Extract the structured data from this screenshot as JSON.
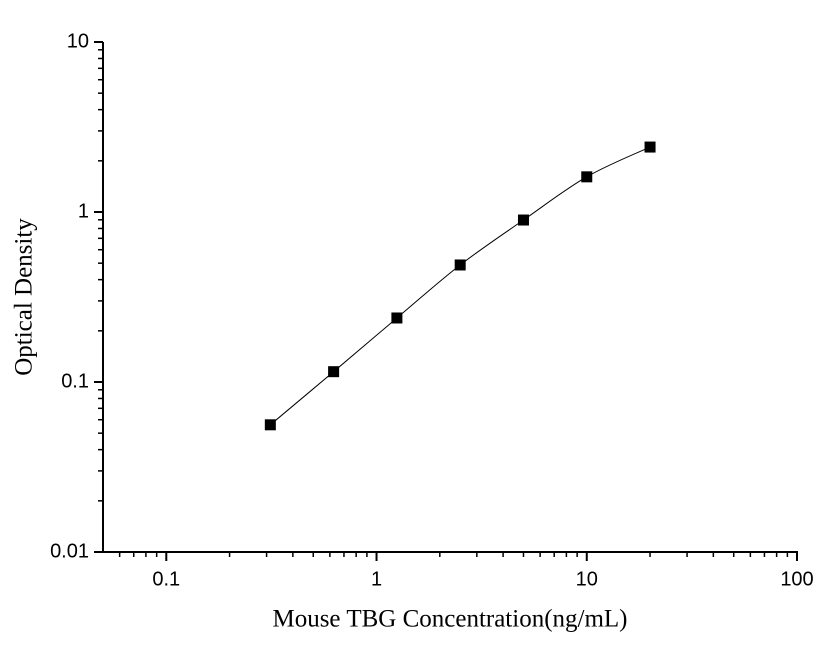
{
  "chart_data": {
    "type": "scatter",
    "x_label": "Mouse TBG Concentration(ng/mL)",
    "y_label": "Optical Density",
    "x": [
      0.3125,
      0.625,
      1.25,
      2.5,
      5,
      10,
      20
    ],
    "values": [
      0.056,
      0.115,
      0.238,
      0.488,
      0.897,
      1.61,
      2.41
    ],
    "color": "#000000",
    "fit_curve": true,
    "xscale": "log",
    "yscale": "log",
    "xlim": [
      0.05,
      100
    ],
    "ylim": [
      0.01,
      10
    ],
    "xticks": [
      0.1,
      1,
      10,
      100
    ],
    "yticks": [
      0.01,
      0.1,
      1,
      10
    ],
    "xminorticks": [
      0.06,
      0.07,
      0.08,
      0.09,
      0.2,
      0.3,
      0.4,
      0.5,
      0.6,
      0.7,
      0.8,
      0.9,
      2,
      3,
      4,
      5,
      6,
      7,
      8,
      9,
      20,
      30,
      40,
      50,
      60,
      70,
      80,
      90
    ],
    "yminorticks": [
      0.02,
      0.03,
      0.04,
      0.05,
      0.06,
      0.07,
      0.08,
      0.09,
      0.2,
      0.3,
      0.4,
      0.5,
      0.6,
      0.7,
      0.8,
      0.9,
      2,
      3,
      4,
      5,
      6,
      7,
      8,
      9
    ]
  }
}
